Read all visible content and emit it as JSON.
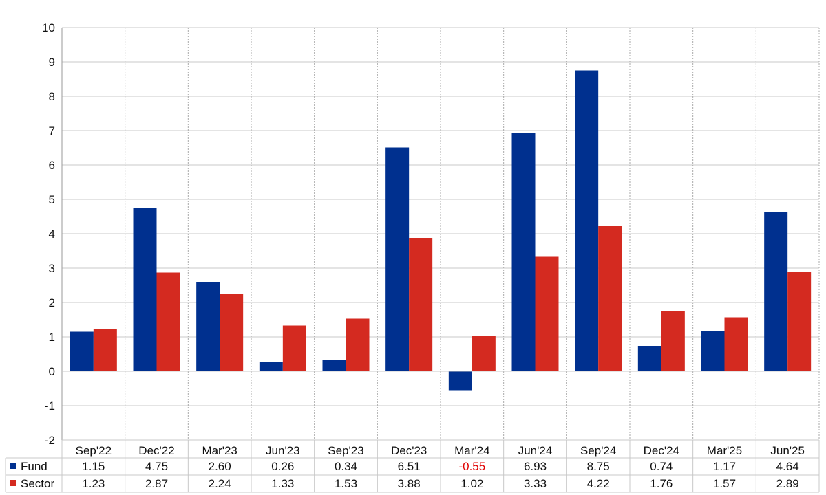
{
  "chart_data": {
    "type": "bar",
    "categories": [
      "Sep'22",
      "Dec'22",
      "Mar'23",
      "Jun'23",
      "Sep'23",
      "Dec'23",
      "Mar'24",
      "Jun'24",
      "Sep'24",
      "Dec'24",
      "Mar'25",
      "Jun'25"
    ],
    "series": [
      {
        "name": "Fund",
        "color": "#00308f",
        "values": [
          1.15,
          4.75,
          2.6,
          0.26,
          0.34,
          6.51,
          -0.55,
          6.93,
          8.75,
          0.74,
          1.17,
          4.64
        ],
        "labels": [
          "1.15",
          "4.75",
          "2.60",
          "0.26",
          "0.34",
          "6.51",
          "-0.55",
          "6.93",
          "8.75",
          "0.74",
          "1.17",
          "4.64"
        ]
      },
      {
        "name": "Sector",
        "color": "#d42a20",
        "values": [
          1.23,
          2.87,
          2.24,
          1.33,
          1.53,
          3.88,
          1.02,
          3.33,
          4.22,
          1.76,
          1.57,
          2.89
        ],
        "labels": [
          "1.23",
          "2.87",
          "2.24",
          "1.33",
          "1.53",
          "3.88",
          "1.02",
          "3.33",
          "4.22",
          "1.76",
          "1.57",
          "2.89"
        ]
      }
    ],
    "ylim": [
      -2,
      10
    ],
    "yticks": [
      "10",
      "9",
      "8",
      "7",
      "6",
      "5",
      "4",
      "3",
      "2",
      "1",
      "0",
      "-1",
      "-2"
    ],
    "negative_label_color": "#e00000",
    "grid": true,
    "legend": "table-below"
  }
}
